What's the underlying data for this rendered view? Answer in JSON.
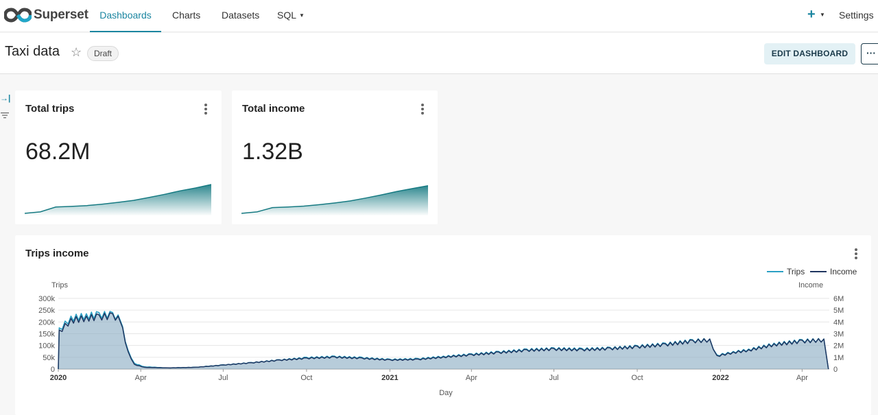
{
  "navbar": {
    "brand": "Superset",
    "items": [
      {
        "label": "Dashboards",
        "active": true
      },
      {
        "label": "Charts"
      },
      {
        "label": "Datasets"
      },
      {
        "label": "SQL",
        "has_caret": true
      }
    ],
    "plus_icon": "plus-icon",
    "settings_label": "Settings"
  },
  "header": {
    "title": "Taxi data",
    "status_badge": "Draft",
    "edit_button": "EDIT DASHBOARD",
    "more_button": "···"
  },
  "colors": {
    "accent": "#1a85a0",
    "trips_series": "#2aa0c4",
    "income_series": "#1f3660",
    "sparkline": "#167a82"
  },
  "cards": {
    "total_trips": {
      "title": "Total trips",
      "value": "68.2M"
    },
    "total_income": {
      "title": "Total income",
      "value": "1.32B"
    }
  },
  "chart": {
    "title": "Trips income",
    "chart_data": {
      "type": "line",
      "title": "Trips income",
      "xlabel": "Day",
      "ylabel_left": "Trips",
      "ylabel_right": "Income",
      "x_ticks": [
        "2020",
        "Apr",
        "Jul",
        "Oct",
        "2021",
        "Apr",
        "Jul",
        "Oct",
        "2022",
        "Apr"
      ],
      "x_ticks_bold": [
        "2020",
        "2021",
        "2022"
      ],
      "y_left_ticks": [
        "0",
        "50k",
        "100k",
        "150k",
        "200k",
        "250k",
        "300k"
      ],
      "y_right_ticks": [
        "0",
        "1M",
        "2M",
        "3M",
        "4M",
        "5M",
        "6M"
      ],
      "ylim_left": [
        0,
        300000
      ],
      "ylim_right": [
        0,
        6000000
      ],
      "legend": {
        "placement": "top-right",
        "entries": [
          "Trips",
          "Income"
        ]
      },
      "grid": true,
      "series": [
        {
          "name": "Trips",
          "axis": "left",
          "area": true,
          "points": [
            [
              "2020-01-01",
              0
            ],
            [
              "2020-01-02",
              175000
            ],
            [
              "2020-01-15",
              225000
            ],
            [
              "2020-02-01",
              235000
            ],
            [
              "2020-02-15",
              240000
            ],
            [
              "2020-03-01",
              240000
            ],
            [
              "2020-03-07",
              230000
            ],
            [
              "2020-03-12",
              180000
            ],
            [
              "2020-03-18",
              80000
            ],
            [
              "2020-03-25",
              25000
            ],
            [
              "2020-04-05",
              10000
            ],
            [
              "2020-05-01",
              5000
            ],
            [
              "2020-06-01",
              8000
            ],
            [
              "2020-07-01",
              18000
            ],
            [
              "2020-08-01",
              28000
            ],
            [
              "2020-09-01",
              40000
            ],
            [
              "2020-10-01",
              50000
            ],
            [
              "2020-11-01",
              55000
            ],
            [
              "2020-12-01",
              50000
            ],
            [
              "2021-01-01",
              42000
            ],
            [
              "2021-02-01",
              45000
            ],
            [
              "2021-03-01",
              55000
            ],
            [
              "2021-04-01",
              65000
            ],
            [
              "2021-05-01",
              75000
            ],
            [
              "2021-06-01",
              85000
            ],
            [
              "2021-07-01",
              90000
            ],
            [
              "2021-08-01",
              88000
            ],
            [
              "2021-09-01",
              92000
            ],
            [
              "2021-10-01",
              100000
            ],
            [
              "2021-11-01",
              110000
            ],
            [
              "2021-12-01",
              125000
            ],
            [
              "2021-12-20",
              128000
            ],
            [
              "2021-12-28",
              60000
            ],
            [
              "2022-01-15",
              75000
            ],
            [
              "2022-02-01",
              85000
            ],
            [
              "2022-03-01",
              110000
            ],
            [
              "2022-04-01",
              125000
            ],
            [
              "2022-04-25",
              128000
            ],
            [
              "2022-04-30",
              0
            ]
          ]
        },
        {
          "name": "Income",
          "axis": "right",
          "area": true,
          "points": [
            [
              "2020-01-01",
              0
            ],
            [
              "2020-01-02",
              3300000
            ],
            [
              "2020-01-15",
              4300000
            ],
            [
              "2020-02-01",
              4500000
            ],
            [
              "2020-02-15",
              4600000
            ],
            [
              "2020-03-01",
              4700000
            ],
            [
              "2020-03-07",
              4500000
            ],
            [
              "2020-03-12",
              3500000
            ],
            [
              "2020-03-18",
              1500000
            ],
            [
              "2020-03-25",
              400000
            ],
            [
              "2020-04-05",
              150000
            ],
            [
              "2020-05-01",
              100000
            ],
            [
              "2020-06-01",
              150000
            ],
            [
              "2020-07-01",
              350000
            ],
            [
              "2020-08-01",
              550000
            ],
            [
              "2020-09-01",
              780000
            ],
            [
              "2020-10-01",
              950000
            ],
            [
              "2020-11-01",
              1050000
            ],
            [
              "2020-12-01",
              950000
            ],
            [
              "2021-01-01",
              800000
            ],
            [
              "2021-02-01",
              850000
            ],
            [
              "2021-03-01",
              1050000
            ],
            [
              "2021-04-01",
              1250000
            ],
            [
              "2021-05-01",
              1450000
            ],
            [
              "2021-06-01",
              1650000
            ],
            [
              "2021-07-01",
              1750000
            ],
            [
              "2021-08-01",
              1700000
            ],
            [
              "2021-09-01",
              1800000
            ],
            [
              "2021-10-01",
              1950000
            ],
            [
              "2021-11-01",
              2150000
            ],
            [
              "2021-12-01",
              2450000
            ],
            [
              "2021-12-20",
              2550000
            ],
            [
              "2021-12-28",
              1150000
            ],
            [
              "2022-01-15",
              1450000
            ],
            [
              "2022-02-01",
              1650000
            ],
            [
              "2022-03-01",
              2150000
            ],
            [
              "2022-04-01",
              2450000
            ],
            [
              "2022-04-25",
              2550000
            ],
            [
              "2022-04-30",
              0
            ]
          ]
        }
      ]
    }
  },
  "sparklines": {
    "total_trips": {
      "type": "area",
      "values": [
        0,
        0.05,
        0.22,
        0.24,
        0.27,
        0.32,
        0.38,
        0.45,
        0.55,
        0.66,
        0.78,
        0.88,
        1.0
      ]
    },
    "total_income": {
      "type": "area",
      "values": [
        0,
        0.05,
        0.2,
        0.22,
        0.25,
        0.3,
        0.36,
        0.43,
        0.53,
        0.64,
        0.76,
        0.86,
        0.96
      ]
    }
  }
}
